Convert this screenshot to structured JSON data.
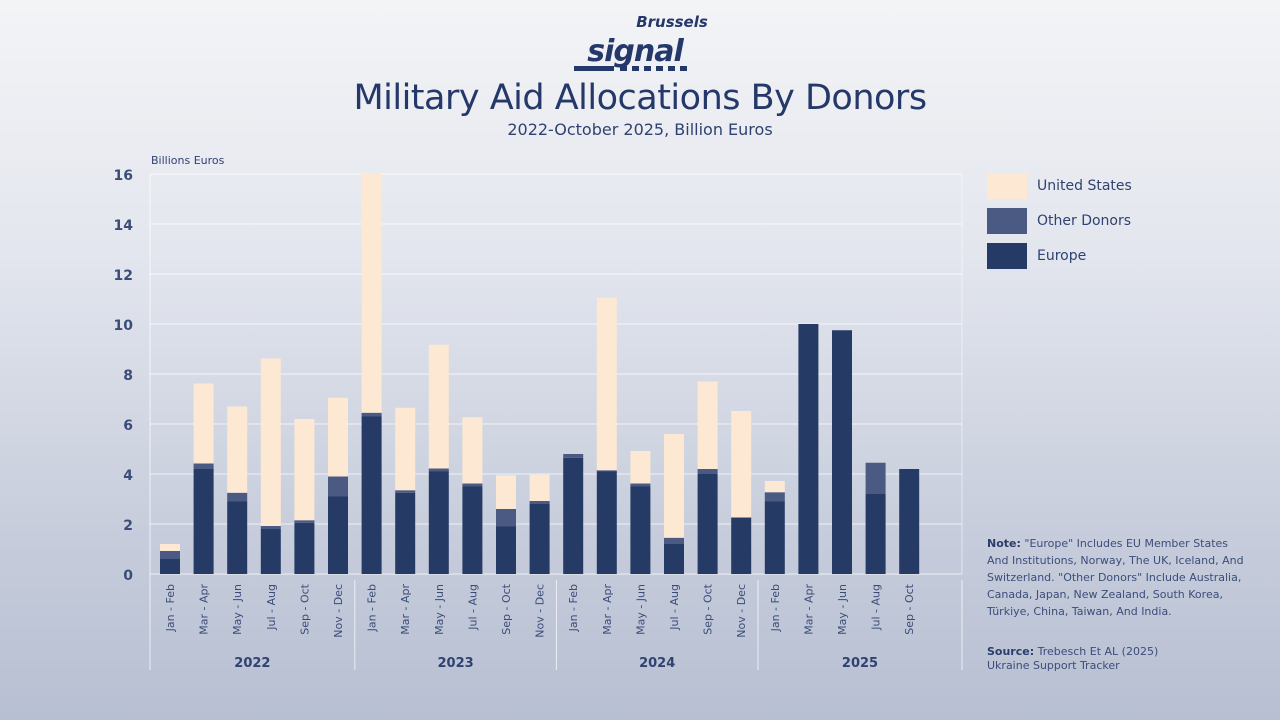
{
  "logo": {
    "top": "Brussels",
    "bottom": "signal"
  },
  "colors": {
    "united_states": "#fde8d3",
    "other_donors": "#4a5a82",
    "europe": "#263a66",
    "text": "#2b3d6b"
  },
  "chart_data": {
    "type": "bar",
    "stacked": true,
    "title": "Military Aid Allocations By Donors",
    "subtitle": "2022-October 2025, Billion Euros",
    "ylabel": "Billions Euros",
    "ylim": [
      0,
      16
    ],
    "yticks": [
      0,
      2,
      4,
      6,
      8,
      10,
      12,
      14,
      16
    ],
    "grid": true,
    "legend_position": "right",
    "categories": [
      "Jan - Feb",
      "Mar - Apr",
      "May - Jun",
      "Jul - Aug",
      "Sep - Oct",
      "Nov - Dec",
      "Jan - Feb",
      "Mar - Apr",
      "May - Jun",
      "Jul - Aug",
      "Sep - Oct",
      "Nov - Dec",
      "Jan - Feb",
      "Mar - Apr",
      "May - Jun",
      "Jul - Aug",
      "Sep - Oct",
      "Nov - Dec",
      "Jan - Feb",
      "Mar - Apr",
      "May - Jun",
      "Jul - Aug",
      "Sep - Oct"
    ],
    "years": [
      {
        "label": "2022",
        "count": 6
      },
      {
        "label": "2023",
        "count": 6
      },
      {
        "label": "2024",
        "count": 6
      },
      {
        "label": "2025",
        "count": 5
      }
    ],
    "series": [
      {
        "name": "Europe",
        "values": [
          0.6,
          4.2,
          2.9,
          1.8,
          2.05,
          3.1,
          6.3,
          3.25,
          4.1,
          3.5,
          1.9,
          2.8,
          4.65,
          4.1,
          3.5,
          1.2,
          4.0,
          2.25,
          2.9,
          10.0,
          9.75,
          3.2,
          4.2
        ]
      },
      {
        "name": "Other Donors",
        "values": [
          0.32,
          0.22,
          0.35,
          0.12,
          0.1,
          0.8,
          0.15,
          0.1,
          0.12,
          0.12,
          0.7,
          0.12,
          0.15,
          0.05,
          0.12,
          0.25,
          0.2,
          0.02,
          0.37,
          0,
          0,
          1.25,
          0
        ]
      },
      {
        "name": "United States",
        "values": [
          0.28,
          3.2,
          3.45,
          6.7,
          4.05,
          3.15,
          9.6,
          3.3,
          4.95,
          2.65,
          1.35,
          1.05,
          0,
          6.9,
          1.3,
          4.15,
          3.5,
          4.25,
          0.45,
          0,
          0,
          0,
          0
        ]
      }
    ]
  },
  "note": {
    "label": "Note:",
    "text": " \"Europe\" Includes EU Member States And Institutions, Norway, The UK, Iceland, And Switzerland. \"Other Donors\" Include Australia, Canada, Japan, New Zealand, South Korea, Türkiye, China, Taiwan, And India."
  },
  "source": {
    "label": "Source:",
    "text": " Trebesch Et AL (2025)",
    "line2": "Ukraine Support Tracker"
  }
}
